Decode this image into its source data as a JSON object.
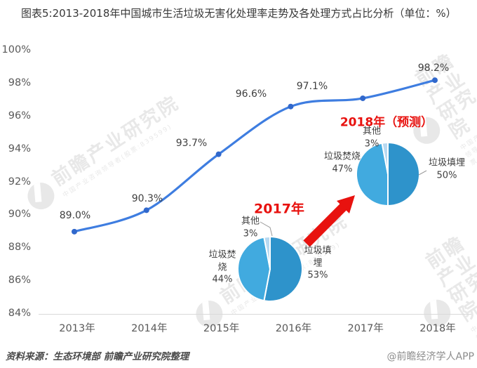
{
  "title": "图表5:2013-2018年中国城市生活垃圾无害化处理率走势及各处理方式占比分析（单位：%）",
  "watermark": {
    "brand": "前瞻产业研究院",
    "subtext": "中国产业咨询领导者(股票:839599)"
  },
  "footer": {
    "source": "资料来源：生态环境部  前瞻产业研究院整理",
    "credit": "@前瞻经济学人APP"
  },
  "colors": {
    "line": "#3E7DE0",
    "marker": "#3168CC",
    "pie_landfill": "#2E93CB",
    "pie_incineration": "#41AADF",
    "pie_other": "#B7D9F1",
    "annotation_red": "#E8120F",
    "axis_text": "#595959",
    "axis_line": "#D9D9D9"
  },
  "chart_data": [
    {
      "type": "line",
      "name": "城市生活垃圾无害化处理率",
      "x": [
        "2013年",
        "2014年",
        "2015年",
        "2016年",
        "2017年",
        "2018年"
      ],
      "values": [
        89.0,
        90.3,
        93.7,
        96.6,
        97.1,
        98.2
      ],
      "point_labels": [
        "89.0%",
        "90.3%",
        "93.7%",
        "96.6%",
        "97.1%",
        "98.2%"
      ],
      "ylim": [
        84,
        100
      ],
      "yticks": [
        "100%",
        "98%",
        "96%",
        "94%",
        "92%",
        "90%",
        "88%",
        "86%",
        "84%"
      ],
      "grid": false,
      "legend": "none"
    },
    {
      "type": "pie",
      "title": "2017年",
      "slices": [
        {
          "label": "垃圾填埋",
          "value": 53,
          "value_label": "53%"
        },
        {
          "label": "垃圾焚烧",
          "value": 44,
          "value_label": "44%"
        },
        {
          "label": "其他",
          "value": 3,
          "value_label": "3%"
        }
      ],
      "label_blocks": {
        "landfill": [
          "垃圾填",
          "埋",
          "53%"
        ],
        "incineration": [
          "垃圾焚",
          "烧",
          "44%"
        ],
        "other": [
          "其他",
          "3%"
        ]
      }
    },
    {
      "type": "pie",
      "title": "2018年（预测）",
      "slices": [
        {
          "label": "垃圾填埋",
          "value": 50,
          "value_label": "50%"
        },
        {
          "label": "垃圾焚烧",
          "value": 47,
          "value_label": "47%"
        },
        {
          "label": "其他",
          "value": 3,
          "value_label": "3%"
        }
      ],
      "label_blocks": {
        "landfill": [
          "垃圾填埋",
          "50%"
        ],
        "incineration": [
          "垃圾焚烧",
          "47%"
        ],
        "other": [
          "其他",
          "3%"
        ]
      }
    }
  ]
}
